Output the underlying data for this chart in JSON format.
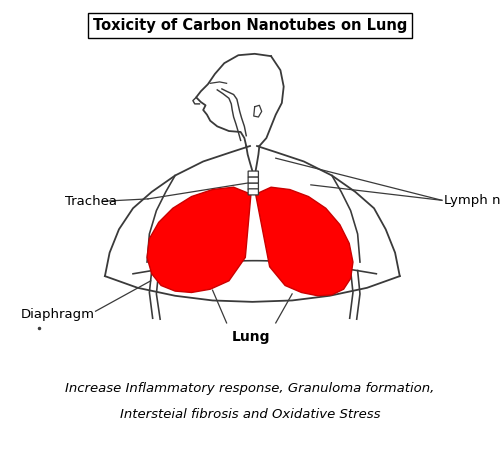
{
  "title": "Toxicity of Carbon Nanotubes on Lung",
  "subtitle_line1": "Increase Inflammatory response, Granuloma formation,",
  "subtitle_line2": "Intersteial fibrosis and Oxidative Stress",
  "label_trachea": "Trachea",
  "label_lymph": "Lymph nodes",
  "label_diaphragm": "Diaphragm",
  "label_lung": "Lung",
  "bg_color": "#ffffff",
  "body_color": "#3a3a3a",
  "lung_fill": "#ff0000",
  "lung_edge": "#cc0000"
}
